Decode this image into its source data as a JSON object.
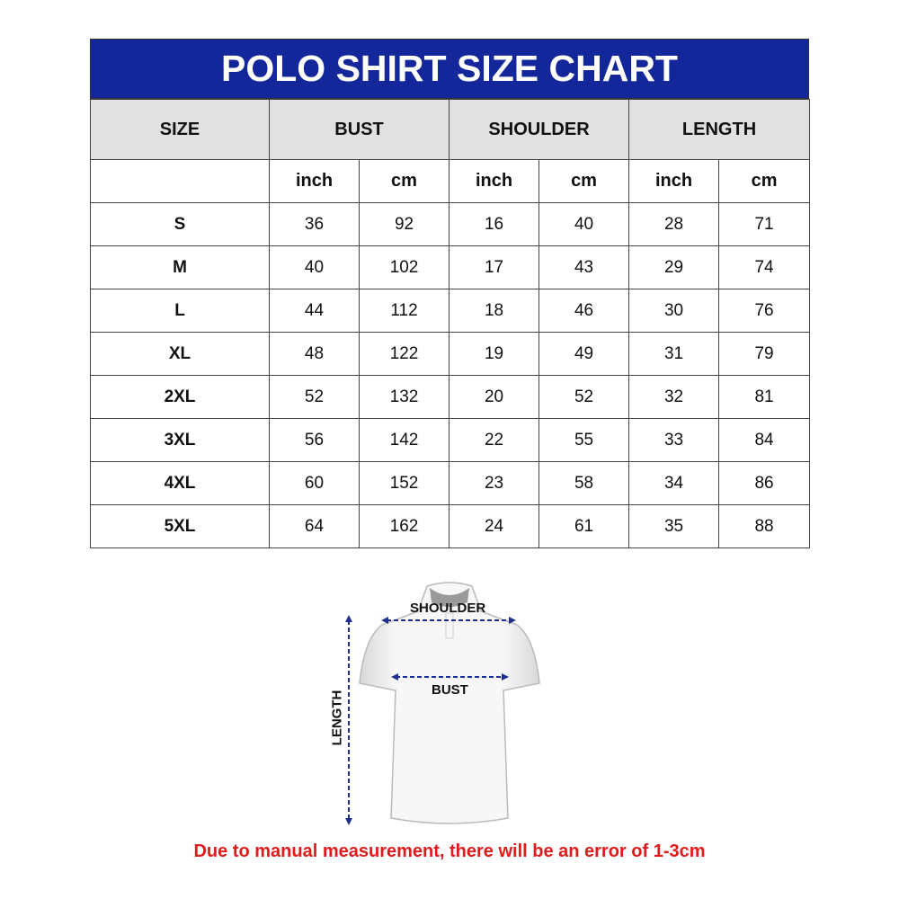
{
  "title": "POLO SHIRT SIZE CHART",
  "colors": {
    "header_bg": "#13279a",
    "subheader_bg": "#e1e1e1",
    "note": "#e01b1b",
    "arrow": "#1f2f8f"
  },
  "headers": [
    "SIZE",
    "BUST",
    "SHOULDER",
    "LENGTH"
  ],
  "units": [
    "inch",
    "cm",
    "inch",
    "cm",
    "inch",
    "cm"
  ],
  "rows": [
    {
      "size": "S",
      "values": [
        "36",
        "92",
        "16",
        "40",
        "28",
        "71"
      ]
    },
    {
      "size": "M",
      "values": [
        "40",
        "102",
        "17",
        "43",
        "29",
        "74"
      ]
    },
    {
      "size": "L",
      "values": [
        "44",
        "112",
        "18",
        "46",
        "30",
        "76"
      ]
    },
    {
      "size": "XL",
      "values": [
        "48",
        "122",
        "19",
        "49",
        "31",
        "79"
      ]
    },
    {
      "size": "2XL",
      "values": [
        "52",
        "132",
        "20",
        "52",
        "32",
        "81"
      ]
    },
    {
      "size": "3XL",
      "values": [
        "56",
        "142",
        "22",
        "55",
        "33",
        "84"
      ]
    },
    {
      "size": "4XL",
      "values": [
        "60",
        "152",
        "23",
        "58",
        "34",
        "86"
      ]
    },
    {
      "size": "5XL",
      "values": [
        "64",
        "162",
        "24",
        "61",
        "35",
        "88"
      ]
    }
  ],
  "diagram": {
    "shoulder": "SHOULDER",
    "bust": "BUST",
    "length": "LENGTH"
  },
  "note": "Due to manual measurement, there will be an error of 1-3cm"
}
